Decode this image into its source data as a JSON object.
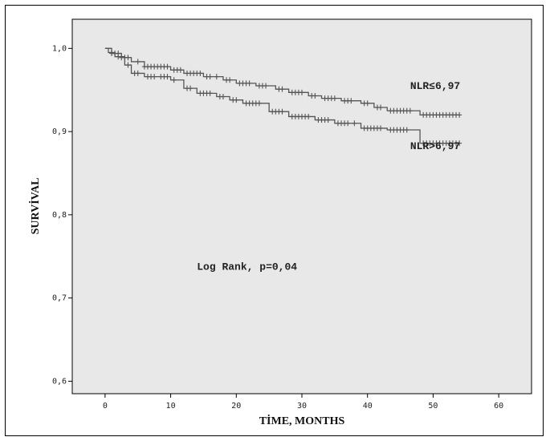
{
  "chart_data": {
    "type": "line",
    "title": "",
    "xlabel": "TİME, MONTHS",
    "ylabel": "SURVİVAL",
    "xlim": [
      -5,
      65
    ],
    "ylim": [
      0.585,
      1.035
    ],
    "x_ticks": [
      0,
      10,
      20,
      30,
      40,
      50,
      60
    ],
    "x_tick_labels": [
      "0",
      "10",
      "20",
      "30",
      "40",
      "50",
      "60"
    ],
    "y_ticks": [
      0.6,
      0.7,
      0.8,
      0.9,
      1.0
    ],
    "y_tick_labels": [
      "0,6",
      "0,7",
      "0,8",
      "0,9",
      "1,0"
    ],
    "grid": false,
    "annotations": [
      {
        "text": "NLR≤6,97",
        "x": 46.5,
        "y": 0.951
      },
      {
        "text": "NLR>6,97",
        "x": 46.5,
        "y": 0.879
      },
      {
        "text": "Log Rank, p=0,04",
        "x": 14,
        "y": 0.734
      }
    ],
    "series": [
      {
        "name": "NLR≤6,97",
        "color": "#555555",
        "steps": [
          [
            0,
            1.0
          ],
          [
            1,
            0.994
          ],
          [
            2.5,
            0.989
          ],
          [
            4,
            0.984
          ],
          [
            6,
            0.978
          ],
          [
            10,
            0.974
          ],
          [
            12,
            0.97
          ],
          [
            15,
            0.966
          ],
          [
            18,
            0.962
          ],
          [
            20,
            0.958
          ],
          [
            23,
            0.955
          ],
          [
            26,
            0.951
          ],
          [
            28,
            0.947
          ],
          [
            31,
            0.943
          ],
          [
            33,
            0.94
          ],
          [
            36,
            0.937
          ],
          [
            39,
            0.934
          ],
          [
            41,
            0.929
          ],
          [
            43,
            0.925
          ],
          [
            48,
            0.92
          ],
          [
            54,
            0.92
          ]
        ],
        "censored": [
          1,
          1.5,
          2,
          2.5,
          3,
          3.5,
          5,
          6,
          6.5,
          7,
          7.5,
          8,
          8.5,
          9,
          9.5,
          10.5,
          11,
          11.5,
          12.5,
          13,
          13.5,
          14,
          14.5,
          15.5,
          16,
          17,
          18.5,
          19,
          20.5,
          21,
          21.5,
          22,
          23.5,
          24,
          24.5,
          26.5,
          27,
          28.5,
          29,
          29.5,
          30,
          31.5,
          32,
          33.5,
          34,
          34.5,
          35,
          36.5,
          37,
          37.5,
          39.5,
          40,
          41.5,
          42,
          43.5,
          44,
          44.5,
          45,
          45.5,
          46,
          46.5,
          48.5,
          49,
          49.5,
          50,
          50.5,
          51,
          51.5,
          52,
          52.5,
          53,
          53.5,
          54
        ]
      },
      {
        "name": "NLR>6,97",
        "color": "#555555",
        "steps": [
          [
            0,
            1.0
          ],
          [
            0.5,
            0.995
          ],
          [
            1.5,
            0.99
          ],
          [
            3,
            0.98
          ],
          [
            4,
            0.97
          ],
          [
            6,
            0.966
          ],
          [
            10,
            0.962
          ],
          [
            12,
            0.952
          ],
          [
            14,
            0.946
          ],
          [
            17,
            0.942
          ],
          [
            19,
            0.938
          ],
          [
            21,
            0.934
          ],
          [
            25,
            0.924
          ],
          [
            28,
            0.918
          ],
          [
            32,
            0.914
          ],
          [
            35,
            0.91
          ],
          [
            39,
            0.904
          ],
          [
            43,
            0.902
          ],
          [
            48,
            0.886
          ],
          [
            54,
            0.886
          ]
        ],
        "censored": [
          1,
          2,
          3.5,
          4.5,
          5,
          6.5,
          7,
          7.5,
          8.5,
          9,
          9.5,
          10.5,
          12.5,
          13,
          14.5,
          15,
          15.5,
          16,
          17.5,
          18,
          19.5,
          20,
          21.5,
          22,
          22.5,
          23,
          23.5,
          25.5,
          26,
          26.5,
          27,
          28.5,
          29,
          29.5,
          30,
          30.5,
          31,
          32.5,
          33,
          33.5,
          34,
          35.5,
          36,
          36.5,
          37,
          38,
          39.5,
          40,
          40.5,
          41,
          41.5,
          42,
          43.5,
          44,
          44.5,
          45,
          45.5,
          46,
          48.5,
          49,
          49.5,
          50,
          50.5,
          51,
          51.5,
          52,
          52.5,
          53,
          53.5,
          54
        ]
      }
    ]
  }
}
